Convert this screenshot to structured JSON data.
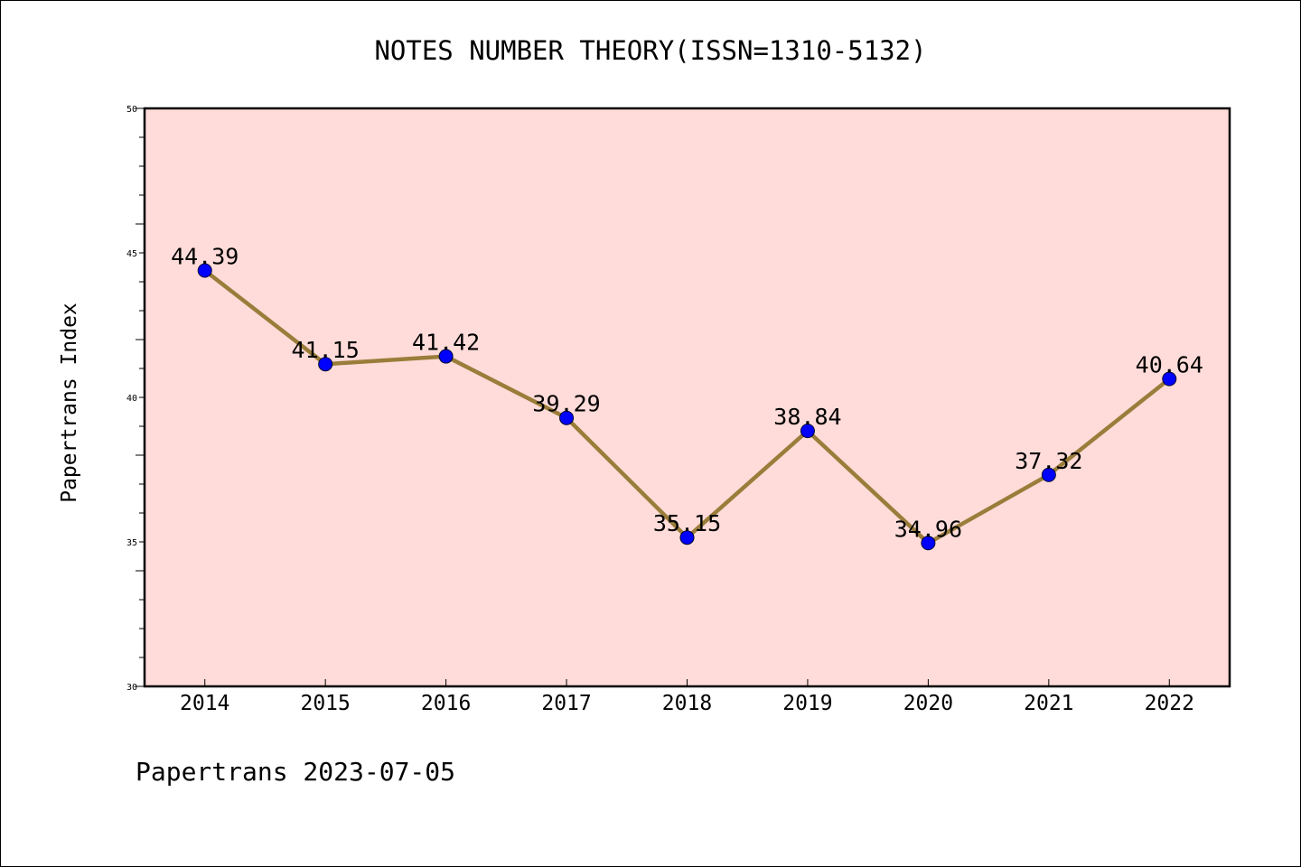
{
  "chart_data": {
    "type": "line",
    "title": "NOTES NUMBER THEORY(ISSN=1310-5132)",
    "xlabel": "",
    "ylabel": "Papertrans Index",
    "categories": [
      "2014",
      "2015",
      "2016",
      "2017",
      "2018",
      "2019",
      "2020",
      "2021",
      "2022"
    ],
    "series": [
      {
        "values": [
          44.39,
          41.15,
          41.42,
          39.29,
          35.15,
          38.84,
          34.96,
          37.32,
          40.64
        ],
        "labels": [
          "44.39",
          "41.15",
          "41.42",
          "39.29",
          "35.15",
          "38.84",
          "34.96",
          "37.32",
          "40.64"
        ]
      }
    ],
    "ylim": [
      30,
      50
    ],
    "yticks": [
      "30",
      "35",
      "40",
      "45",
      "50"
    ],
    "grid": false,
    "colors": {
      "plot_background": "#ffdcd9",
      "line": "#9a7d3a",
      "marker": "#0000ff"
    }
  },
  "footer": "Papertrans 2023-07-05"
}
